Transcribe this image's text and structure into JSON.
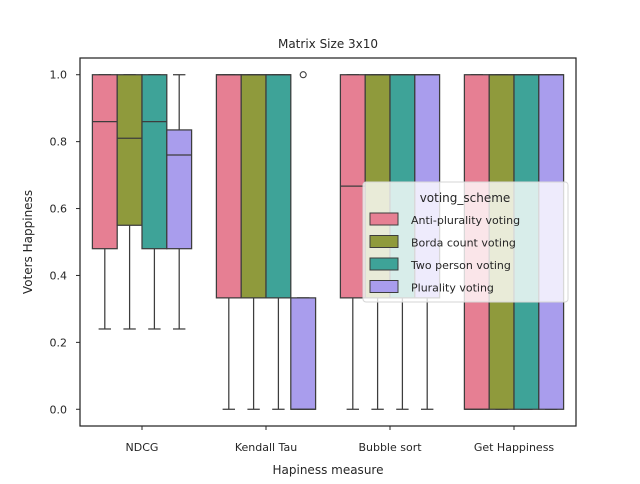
{
  "chart_data": {
    "type": "box",
    "title": "Matrix Size 3x10",
    "xlabel": "Hapiness measure",
    "ylabel": "Voters Happiness",
    "ylim": [
      -0.05,
      1.05
    ],
    "yticks": [
      0.0,
      0.2,
      0.4,
      0.6,
      0.8,
      1.0
    ],
    "ytick_labels": [
      "0.0",
      "0.2",
      "0.4",
      "0.6",
      "0.8",
      "1.0"
    ],
    "grid": false,
    "legend": {
      "title": "voting_scheme",
      "placement": "center-right"
    },
    "categories": [
      "NDCG",
      "Kendall Tau",
      "Bubble sort",
      "Get Happiness"
    ],
    "series": [
      {
        "name": "Anti-plurality voting",
        "color": "#e67f93",
        "boxes": [
          {
            "whislo": 0.24,
            "q1": 0.48,
            "med": 0.86,
            "q3": 1.0,
            "whishi": 1.0,
            "fliers": []
          },
          {
            "whislo": 0.0,
            "q1": 0.333,
            "med": 1.0,
            "q3": 1.0,
            "whishi": 1.0,
            "fliers": []
          },
          {
            "whislo": 0.0,
            "q1": 0.333,
            "med": 0.667,
            "q3": 1.0,
            "whishi": 1.0,
            "fliers": []
          },
          {
            "whislo": 0.0,
            "q1": 0.0,
            "med": 0.0,
            "q3": 1.0,
            "whishi": 1.0,
            "fliers": []
          }
        ]
      },
      {
        "name": "Borda count voting",
        "color": "#8f9a3c",
        "boxes": [
          {
            "whislo": 0.24,
            "q1": 0.55,
            "med": 0.81,
            "q3": 1.0,
            "whishi": 1.0,
            "fliers": []
          },
          {
            "whislo": 0.0,
            "q1": 0.333,
            "med": 1.0,
            "q3": 1.0,
            "whishi": 1.0,
            "fliers": []
          },
          {
            "whislo": 0.0,
            "q1": 0.333,
            "med": 1.0,
            "q3": 1.0,
            "whishi": 1.0,
            "fliers": []
          },
          {
            "whislo": 0.0,
            "q1": 0.0,
            "med": 1.0,
            "q3": 1.0,
            "whishi": 1.0,
            "fliers": []
          }
        ]
      },
      {
        "name": "Two person voting",
        "color": "#3ea398",
        "boxes": [
          {
            "whislo": 0.24,
            "q1": 0.48,
            "med": 0.86,
            "q3": 1.0,
            "whishi": 1.0,
            "fliers": []
          },
          {
            "whislo": 0.0,
            "q1": 0.333,
            "med": 1.0,
            "q3": 1.0,
            "whishi": 1.0,
            "fliers": []
          },
          {
            "whislo": 0.0,
            "q1": 0.333,
            "med": 1.0,
            "q3": 1.0,
            "whishi": 1.0,
            "fliers": []
          },
          {
            "whislo": 0.0,
            "q1": 0.0,
            "med": 1.0,
            "q3": 1.0,
            "whishi": 1.0,
            "fliers": []
          }
        ]
      },
      {
        "name": "Plurality voting",
        "color": "#a99ded",
        "boxes": [
          {
            "whislo": 0.24,
            "q1": 0.48,
            "med": 0.76,
            "q3": 0.835,
            "whishi": 1.0,
            "fliers": []
          },
          {
            "whislo": 0.0,
            "q1": 0.0,
            "med": 0.0,
            "q3": 0.333,
            "whishi": 0.333,
            "fliers": [
              1.0
            ]
          },
          {
            "whislo": 0.0,
            "q1": 0.333,
            "med": 1.0,
            "q3": 1.0,
            "whishi": 1.0,
            "fliers": []
          },
          {
            "whislo": 0.0,
            "q1": 0.0,
            "med": 1.0,
            "q3": 1.0,
            "whishi": 1.0,
            "fliers": []
          }
        ]
      }
    ]
  }
}
